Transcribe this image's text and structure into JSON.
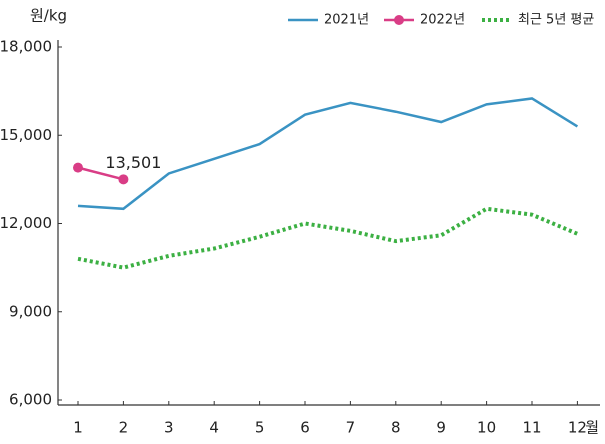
{
  "chart_data": {
    "type": "line",
    "y_label": "원/kg",
    "x_label": "월",
    "categories": [
      "1",
      "2",
      "3",
      "4",
      "5",
      "6",
      "7",
      "8",
      "9",
      "10",
      "11",
      "12"
    ],
    "series": [
      {
        "name": "2021년",
        "color": "#3a93c3",
        "style": "solid",
        "marker": false,
        "values": [
          12600,
          12500,
          13700,
          14200,
          14700,
          15700,
          16100,
          15800,
          15450,
          16050,
          16250,
          15300
        ]
      },
      {
        "name": "2022년",
        "color": "#d93d86",
        "style": "solid",
        "marker": true,
        "values": [
          13900,
          13501,
          null,
          null,
          null,
          null,
          null,
          null,
          null,
          null,
          null,
          null
        ],
        "value_labels": [
          null,
          "13,501",
          null,
          null,
          null,
          null,
          null,
          null,
          null,
          null,
          null,
          null
        ]
      },
      {
        "name": "최근 5년 평균",
        "color": "#3cb043",
        "style": "dotted",
        "marker": false,
        "values": [
          10800,
          10500,
          10900,
          11150,
          11550,
          12000,
          11750,
          11400,
          11600,
          12500,
          12300,
          11650
        ]
      }
    ],
    "ylim": [
      6000,
      18000
    ],
    "yticks": [
      {
        "value": 6000,
        "label": "6,000"
      },
      {
        "value": 9000,
        "label": "9,000"
      },
      {
        "value": 12000,
        "label": "12,000"
      },
      {
        "value": 15000,
        "label": "15,000"
      },
      {
        "value": 18000,
        "label": "18,000"
      }
    ],
    "grid": false,
    "legend": "top-right"
  }
}
